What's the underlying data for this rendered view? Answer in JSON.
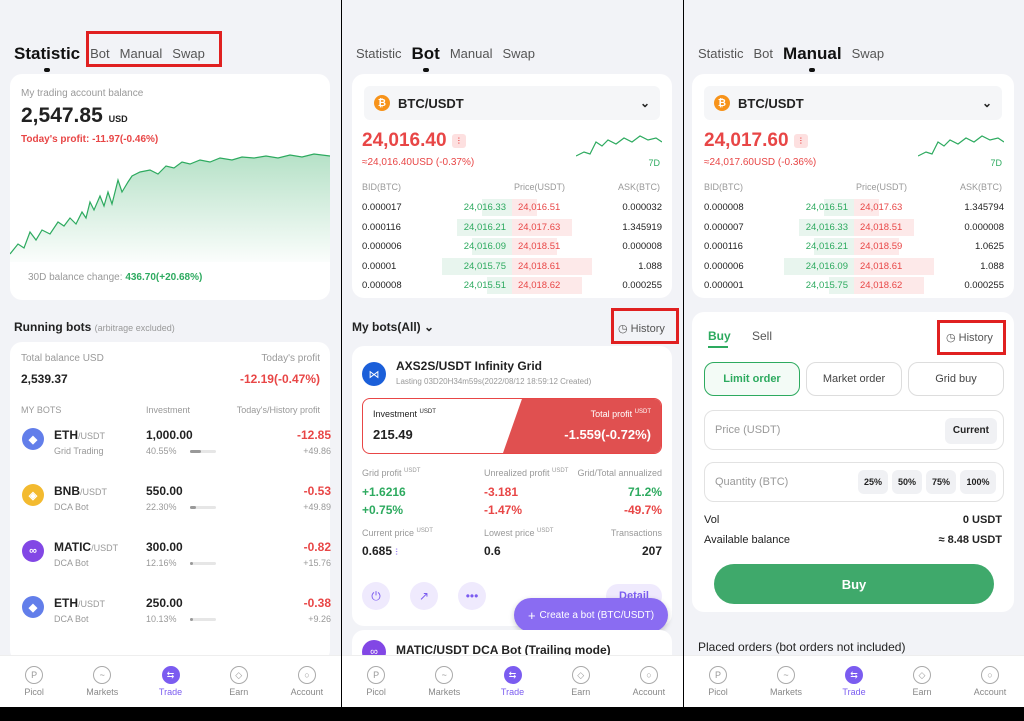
{
  "screen1": {
    "tabs": [
      "Statistic",
      "Bot",
      "Manual",
      "Swap"
    ],
    "balance_label": "My trading account balance",
    "balance": "2,547.85",
    "currency": "USD",
    "todays_profit": "Today's profit: -11.97(-0.46%)",
    "change_label": "30D balance change:",
    "change_value": "436.70(+20.68%)",
    "running_title": "Running bots",
    "running_note": "(arbitrage excluded)",
    "total_label": "Total balance USD",
    "todays_label": "Today's profit",
    "total_value": "2,539.37",
    "todays_value": "-12.19(-0.47%)",
    "col_bots": "MY BOTS",
    "col_invest": "Investment",
    "col_profit": "Today's/History profit",
    "bots": [
      {
        "coin": "ETH",
        "quote": "/USDT",
        "type": "Grid Trading",
        "invest": "1,000.00",
        "pct": "40.55%",
        "fill": 0.41,
        "today": "-12.85",
        "history": "+49.86",
        "color": "#627eea",
        "glyph": "◆"
      },
      {
        "coin": "BNB",
        "quote": "/USDT",
        "type": "DCA Bot",
        "invest": "550.00",
        "pct": "22.30%",
        "fill": 0.22,
        "today": "-0.53",
        "history": "+49.89",
        "color": "#f3ba2f",
        "glyph": "◈"
      },
      {
        "coin": "MATIC",
        "quote": "/USDT",
        "type": "DCA Bot",
        "invest": "300.00",
        "pct": "12.16%",
        "fill": 0.12,
        "today": "-0.82",
        "history": "+15.76",
        "color": "#8247e5",
        "glyph": "∞"
      },
      {
        "coin": "ETH",
        "quote": "/USDT",
        "type": "DCA Bot",
        "invest": "250.00",
        "pct": "10.13%",
        "fill": 0.1,
        "today": "-0.38",
        "history": "+9.26",
        "color": "#627eea",
        "glyph": "◆"
      }
    ]
  },
  "nav": [
    "Picol",
    "Markets",
    "Trade",
    "Earn",
    "Account"
  ],
  "screen2": {
    "tabs": [
      "Statistic",
      "Bot",
      "Manual",
      "Swap"
    ],
    "pair": "BTC/USDT",
    "price": "24,016.40",
    "price_sub": "≈24,016.40USD (-0.37%)",
    "period": "7D",
    "ob_headers": [
      "BID(BTC)",
      "Price(USDT)",
      "ASK(BTC)"
    ],
    "orderbook": [
      [
        "0.000017",
        "24,016.33",
        "24,016.51",
        "0.000032"
      ],
      [
        "0.000116",
        "24,016.21",
        "24,017.63",
        "1.345919"
      ],
      [
        "0.000006",
        "24,016.09",
        "24,018.51",
        "0.000008"
      ],
      [
        "0.00001",
        "24,015.75",
        "24,018.61",
        "1.088"
      ],
      [
        "0.000008",
        "24,015.51",
        "24,018.62",
        "0.000255"
      ]
    ],
    "mybots": "My bots(All)",
    "history": "History",
    "bot_name": "AXS2S/USDT Infinity Grid",
    "bot_sub": "Lasting 03D20H34m59s(2022/08/12 18:59:12 Created)",
    "invest_label": "Investment",
    "unit": "USDT",
    "invest_value": "215.49",
    "total_profit_label": "Total profit",
    "total_profit": "-1.559(-0.72%)",
    "grid_profit_label": "Grid profit",
    "grid_profit": "+1.6216",
    "grid_profit_pct": "+0.75%",
    "unreal_label": "Unrealized profit",
    "unreal": "-3.181",
    "unreal_pct": "-1.47%",
    "annual_label": "Grid/Total annualized",
    "annual1": "71.2%",
    "annual2": "-49.7%",
    "cur_price_label": "Current price",
    "cur_price": "0.685",
    "low_price_label": "Lowest price",
    "low_price": "0.6",
    "tx_label": "Transactions",
    "tx": "207",
    "detail": "Detail",
    "create": "Create a bot (BTC/USDT)",
    "bot2_name": "MATIC/USDT DCA Bot (Trailing mode)"
  },
  "screen3": {
    "tabs": [
      "Statistic",
      "Bot",
      "Manual",
      "Swap"
    ],
    "pair": "BTC/USDT",
    "price": "24,017.60",
    "price_sub": "≈24,017.60USD (-0.36%)",
    "period": "7D",
    "ob_headers": [
      "BID(BTC)",
      "Price(USDT)",
      "ASK(BTC)"
    ],
    "orderbook": [
      [
        "0.000008",
        "24,016.51",
        "24,017.63",
        "1.345794"
      ],
      [
        "0.000007",
        "24,016.33",
        "24,018.51",
        "0.000008"
      ],
      [
        "0.000116",
        "24,016.21",
        "24,018.59",
        "1.0625"
      ],
      [
        "0.000006",
        "24,016.09",
        "24,018.61",
        "1.088"
      ],
      [
        "0.000001",
        "24,015.75",
        "24,018.62",
        "0.000255"
      ]
    ],
    "buy": "Buy",
    "sell": "Sell",
    "history": "History",
    "order_types": [
      "Limit order",
      "Market order",
      "Grid buy"
    ],
    "price_placeholder": "Price (USDT)",
    "current": "Current",
    "qty_placeholder": "Quantity (BTC)",
    "pcts": [
      "25%",
      "50%",
      "75%",
      "100%"
    ],
    "vol_label": "Vol",
    "vol_value": "0 USDT",
    "avail_label": "Available balance",
    "avail_value": "≈ 8.48 USDT",
    "buy_button": "Buy",
    "placed": "Placed orders (bot orders not included)"
  }
}
